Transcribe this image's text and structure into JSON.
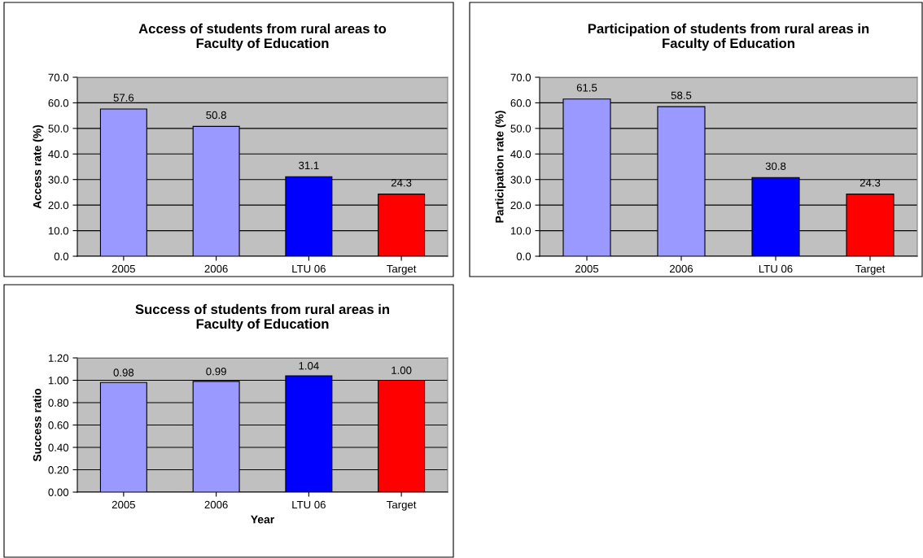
{
  "chart_data": [
    {
      "type": "bar",
      "title": "Access of students from rural areas to\nFaculty of Education",
      "ylabel": "Access rate (%)",
      "categories": [
        "2005",
        "2006",
        "LTU 06",
        "Target"
      ],
      "values": [
        57.6,
        50.8,
        31.1,
        24.3
      ],
      "colors": [
        "#9999ff",
        "#9999ff",
        "#0000ff",
        "#ff0000"
      ],
      "ylim": [
        0,
        70
      ],
      "yticks": [
        {
          "value": 0,
          "label": "0.0"
        },
        {
          "value": 10,
          "label": "10.0"
        },
        {
          "value": 20,
          "label": "20.0"
        },
        {
          "value": 30,
          "label": "30.0"
        },
        {
          "value": 40,
          "label": "40.0"
        },
        {
          "value": 50,
          "label": "50.0"
        },
        {
          "value": 60,
          "label": "60.0"
        },
        {
          "value": 70,
          "label": "70.0"
        }
      ],
      "value_labels": [
        "57.6",
        "50.8",
        "31.1",
        "24.3"
      ],
      "grid": "y",
      "legend": false
    },
    {
      "type": "bar",
      "title": "Participation of students from rural areas in\nFaculty of Education",
      "ylabel": "Participation rate (%)",
      "categories": [
        "2005",
        "2006",
        "LTU 06",
        "Target"
      ],
      "values": [
        61.5,
        58.5,
        30.8,
        24.3
      ],
      "colors": [
        "#9999ff",
        "#9999ff",
        "#0000ff",
        "#ff0000"
      ],
      "ylim": [
        0,
        70
      ],
      "yticks": [
        {
          "value": 0,
          "label": "0.0"
        },
        {
          "value": 10,
          "label": "10.0"
        },
        {
          "value": 20,
          "label": "20.0"
        },
        {
          "value": 30,
          "label": "30.0"
        },
        {
          "value": 40,
          "label": "40.0"
        },
        {
          "value": 50,
          "label": "50.0"
        },
        {
          "value": 60,
          "label": "60.0"
        },
        {
          "value": 70,
          "label": "70.0"
        }
      ],
      "value_labels": [
        "61.5",
        "58.5",
        "30.8",
        "24.3"
      ],
      "grid": "y",
      "legend": false
    },
    {
      "type": "bar",
      "title": "Success of students from rural areas in\nFaculty of Education",
      "xlabel": "Year",
      "ylabel": "Success ratio",
      "categories": [
        "2005",
        "2006",
        "LTU 06",
        "Target"
      ],
      "values": [
        0.98,
        0.99,
        1.04,
        1.0
      ],
      "colors": [
        "#9999ff",
        "#9999ff",
        "#0000ff",
        "#ff0000"
      ],
      "ylim": [
        0,
        1.2
      ],
      "yticks": [
        {
          "value": 0,
          "label": "0.00"
        },
        {
          "value": 0.2,
          "label": "0.20"
        },
        {
          "value": 0.4,
          "label": "0.40"
        },
        {
          "value": 0.6,
          "label": "0.60"
        },
        {
          "value": 0.8,
          "label": "0.80"
        },
        {
          "value": 1.0,
          "label": "1.00"
        },
        {
          "value": 1.2,
          "label": "1.20"
        }
      ],
      "value_labels": [
        "0.98",
        "0.99",
        "1.04",
        "1.00"
      ],
      "grid": "y",
      "legend": false
    }
  ]
}
